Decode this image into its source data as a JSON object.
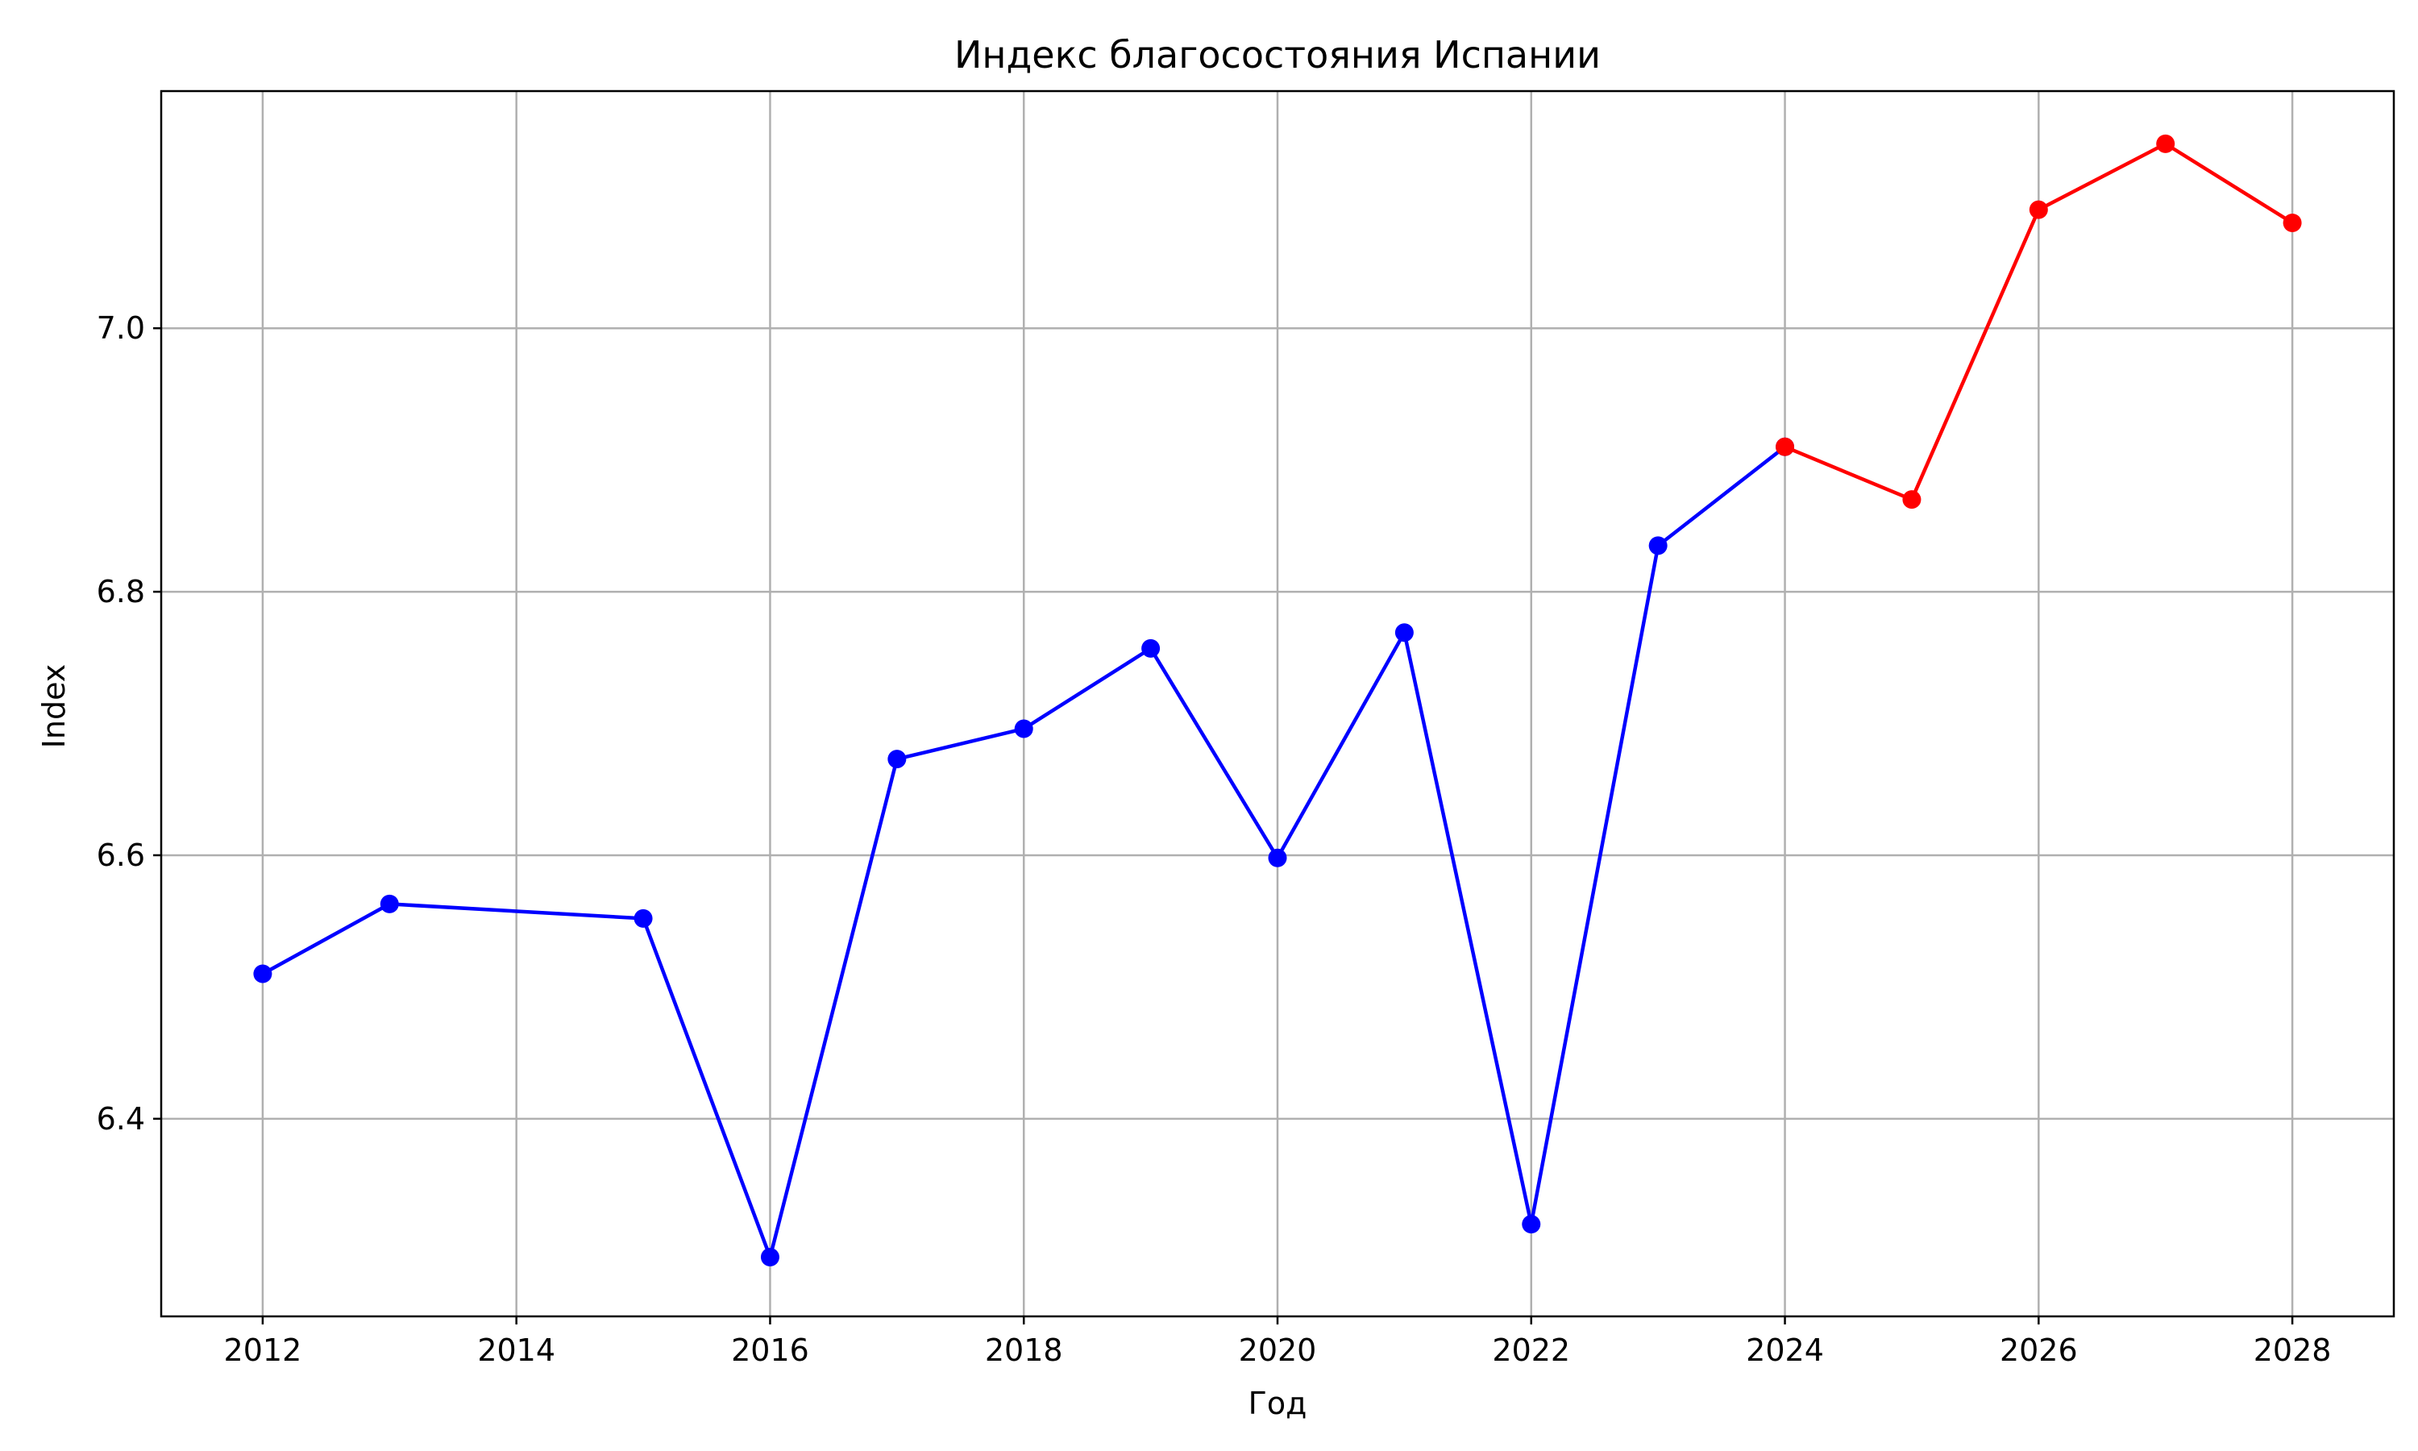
{
  "chart_data": {
    "type": "line",
    "title": "Индекс благосостояния Испании",
    "xlabel": "Год",
    "ylabel": "Index",
    "xlim": [
      2011.2,
      2028.8
    ],
    "ylim": [
      6.25,
      7.18
    ],
    "xticks": [
      "2012",
      "2014",
      "2016",
      "2018",
      "2020",
      "2022",
      "2024",
      "2026",
      "2028"
    ],
    "yticks": [
      "6.4",
      "6.6",
      "6.8",
      "7.0"
    ],
    "grid": true,
    "series": [
      {
        "color": "#0000ff",
        "x": [
          2012,
          2013,
          2015,
          2016,
          2017,
          2018,
          2019,
          2020,
          2021,
          2022,
          2023,
          2024
        ],
        "values": [
          6.51,
          6.563,
          6.552,
          6.295,
          6.673,
          6.696,
          6.757,
          6.598,
          6.769,
          6.32,
          6.835,
          6.91
        ]
      },
      {
        "color": "#ff0000",
        "x": [
          2024,
          2025,
          2026,
          2027,
          2028
        ],
        "values": [
          6.91,
          6.87,
          7.09,
          7.14,
          7.08
        ]
      }
    ]
  }
}
